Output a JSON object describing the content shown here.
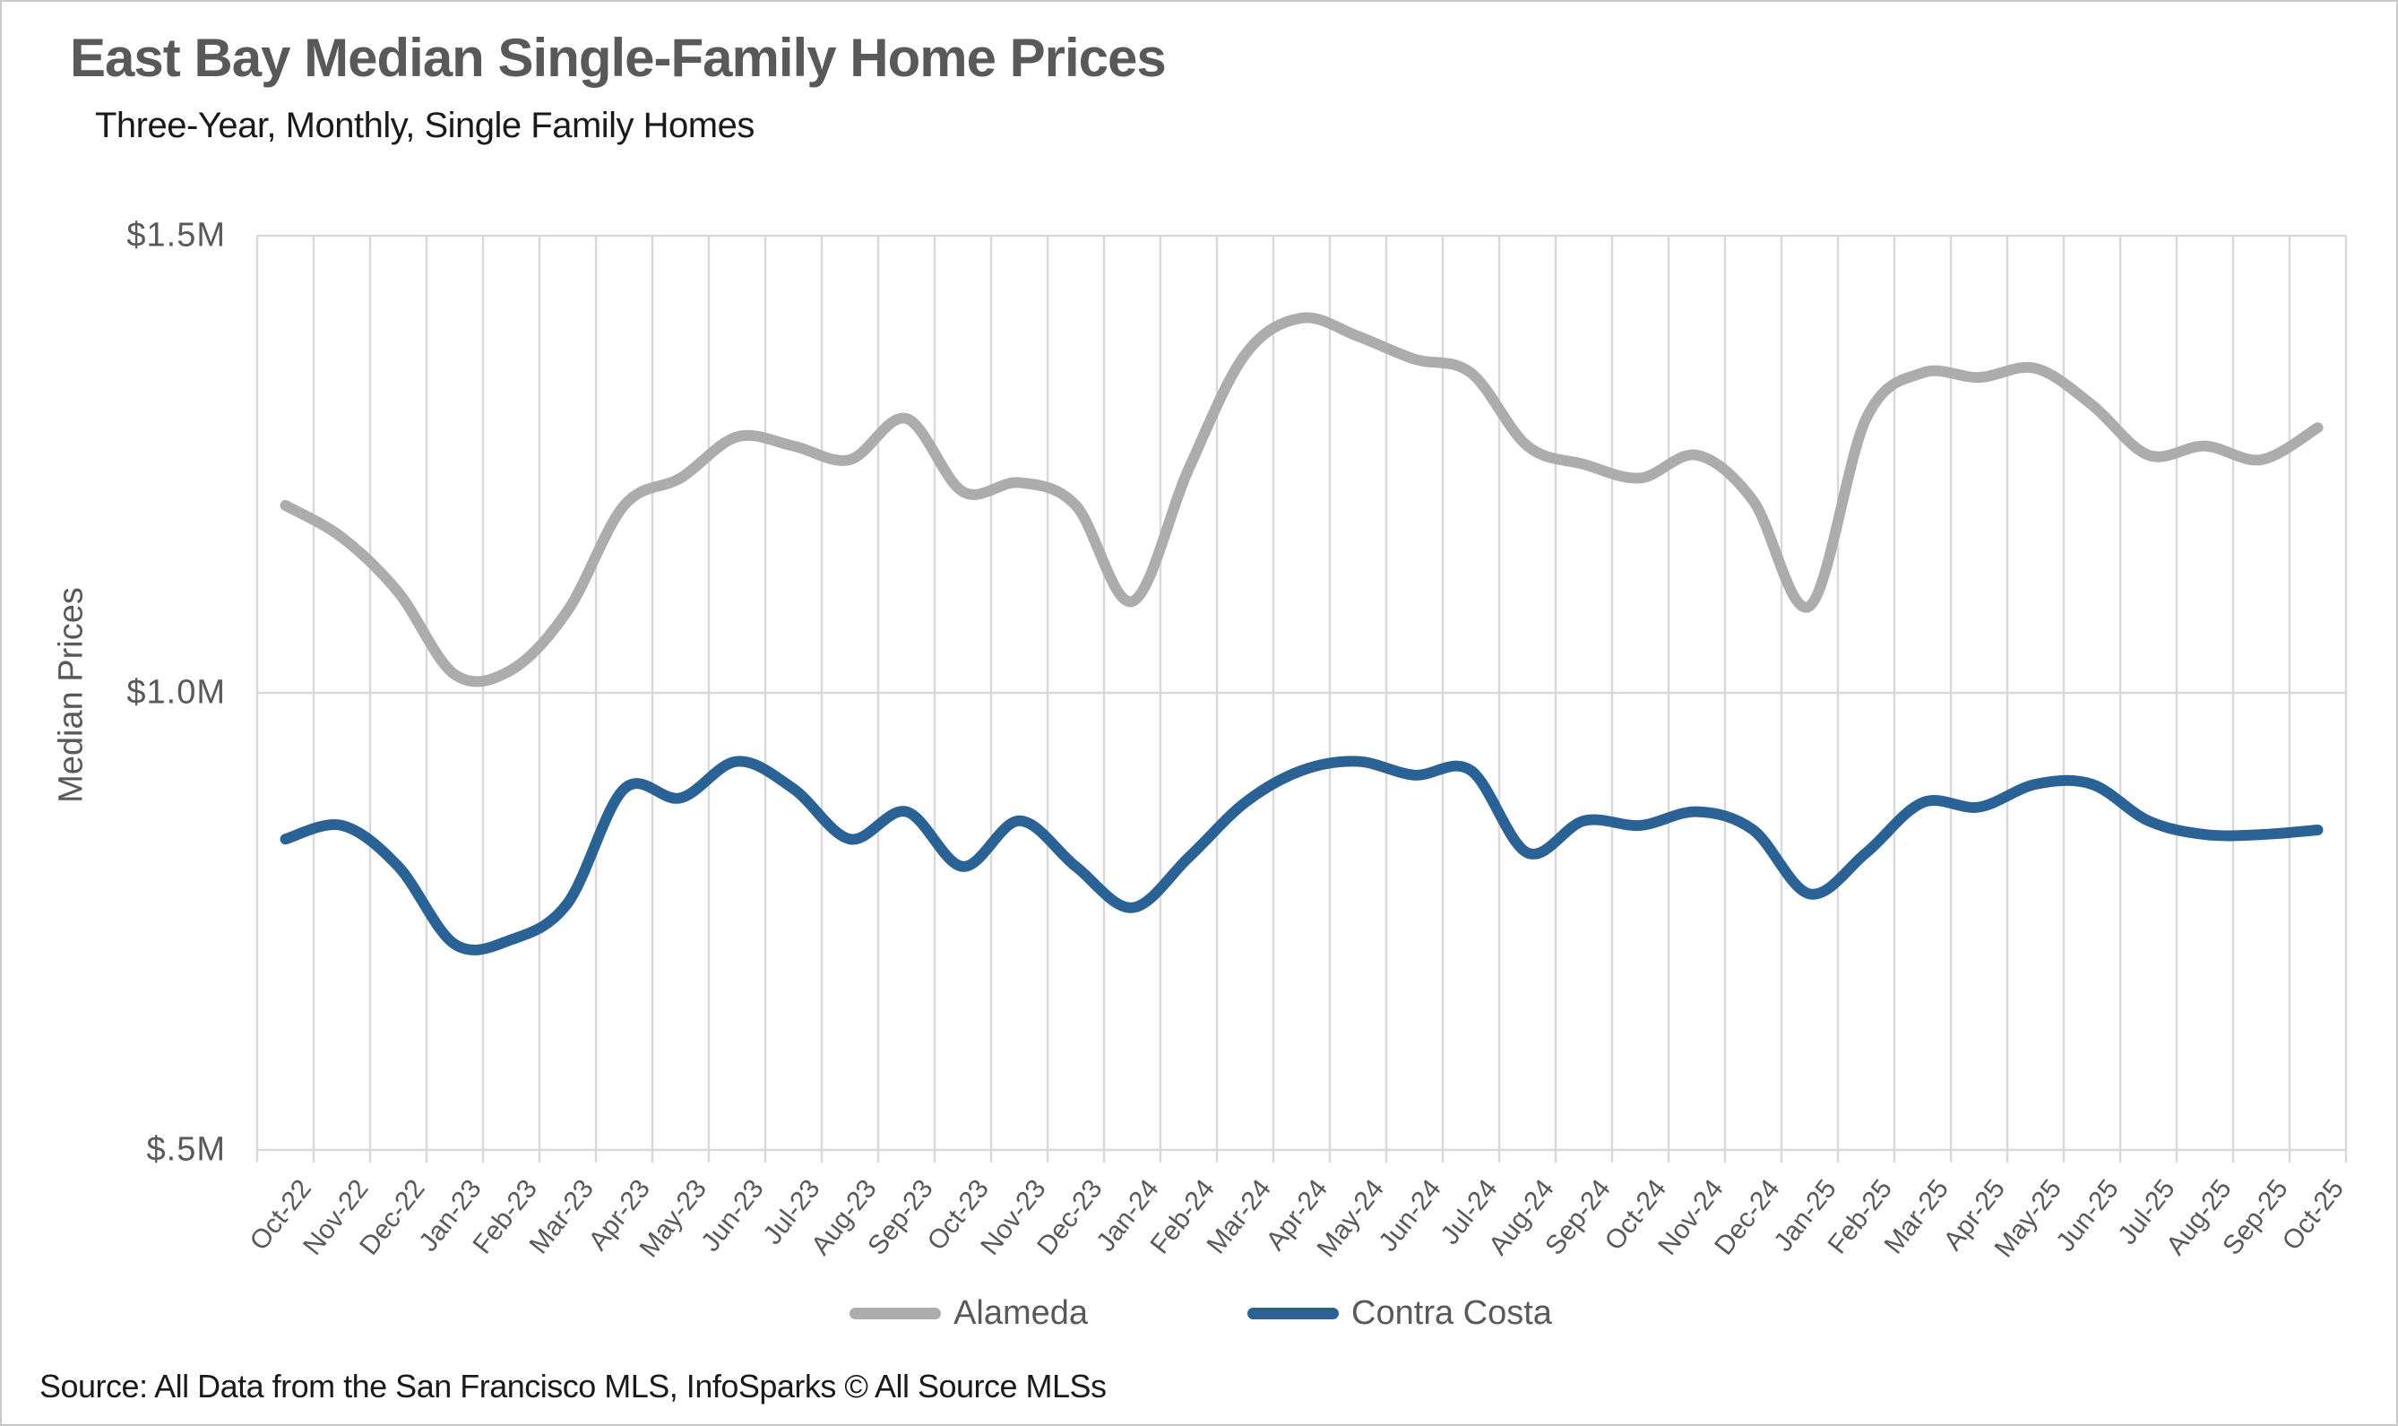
{
  "title": "East Bay Median Single-Family Home Prices",
  "subtitle": "Three-Year, Monthly, Single Family Homes",
  "source": "Source: All Data from the San Francisco MLS, InfoSparks © All Source MLSs",
  "colors": {
    "alameda": "#ACACAC",
    "contra_costa": "#2B6295",
    "gridline": "#D9D9D9",
    "axis_text": "#595959",
    "title_text": "#595959",
    "body_text": "#1A1A1A"
  },
  "chart_data": {
    "type": "line",
    "title": "East Bay Median Single-Family Home Prices",
    "subtitle": "Three-Year, Monthly, Single Family Homes",
    "xlabel": "",
    "ylabel": "Median Prices",
    "units": "millions USD",
    "ylim": [
      0.5,
      1.5
    ],
    "grid": "vertical gridline per month; horizontal gridlines at $0.5M, $1.0M, $1.5M",
    "legend_position": "bottom-center",
    "smoothing": "smoothed (spline) lines, no markers",
    "y_ticks": [
      {
        "label": "$1.5M",
        "value": 1.5
      },
      {
        "label": "$1.0M",
        "value": 1.0
      },
      {
        "label": "$.5M",
        "value": 0.5
      }
    ],
    "x": [
      "Oct-22",
      "Nov-22",
      "Dec-22",
      "Jan-23",
      "Feb-23",
      "Mar-23",
      "Apr-23",
      "May-23",
      "Jun-23",
      "Jul-23",
      "Aug-23",
      "Sep-23",
      "Oct-23",
      "Nov-23",
      "Dec-23",
      "Jan-24",
      "Feb-24",
      "Mar-24",
      "Apr-24",
      "May-24",
      "Jun-24",
      "Jul-24",
      "Aug-24",
      "Sep-24",
      "Oct-24",
      "Nov-24",
      "Dec-24",
      "Jan-25",
      "Feb-25",
      "Mar-25",
      "Apr-25",
      "May-25",
      "Jun-25",
      "Jul-25",
      "Aug-25",
      "Sep-25",
      "Oct-25"
    ],
    "series": [
      {
        "name": "Alameda",
        "color": "#ACACAC",
        "stroke_width": 12,
        "values": [
          1.205,
          1.17,
          1.11,
          1.02,
          1.025,
          1.09,
          1.205,
          1.235,
          1.28,
          1.27,
          1.255,
          1.3,
          1.22,
          1.23,
          1.205,
          1.1,
          1.245,
          1.37,
          1.41,
          1.39,
          1.365,
          1.35,
          1.27,
          1.25,
          1.235,
          1.26,
          1.21,
          1.095,
          1.3,
          1.35,
          1.345,
          1.355,
          1.315,
          1.26,
          1.27,
          1.255,
          1.29
        ]
      },
      {
        "name": "Contra Costa",
        "color": "#2B6295",
        "stroke_width": 12,
        "values": [
          0.84,
          0.855,
          0.81,
          0.725,
          0.73,
          0.77,
          0.895,
          0.885,
          0.925,
          0.895,
          0.84,
          0.87,
          0.81,
          0.86,
          0.81,
          0.765,
          0.82,
          0.88,
          0.915,
          0.925,
          0.91,
          0.915,
          0.825,
          0.86,
          0.855,
          0.87,
          0.85,
          0.78,
          0.825,
          0.88,
          0.875,
          0.9,
          0.9,
          0.86,
          0.845,
          0.845,
          0.85
        ]
      }
    ]
  }
}
